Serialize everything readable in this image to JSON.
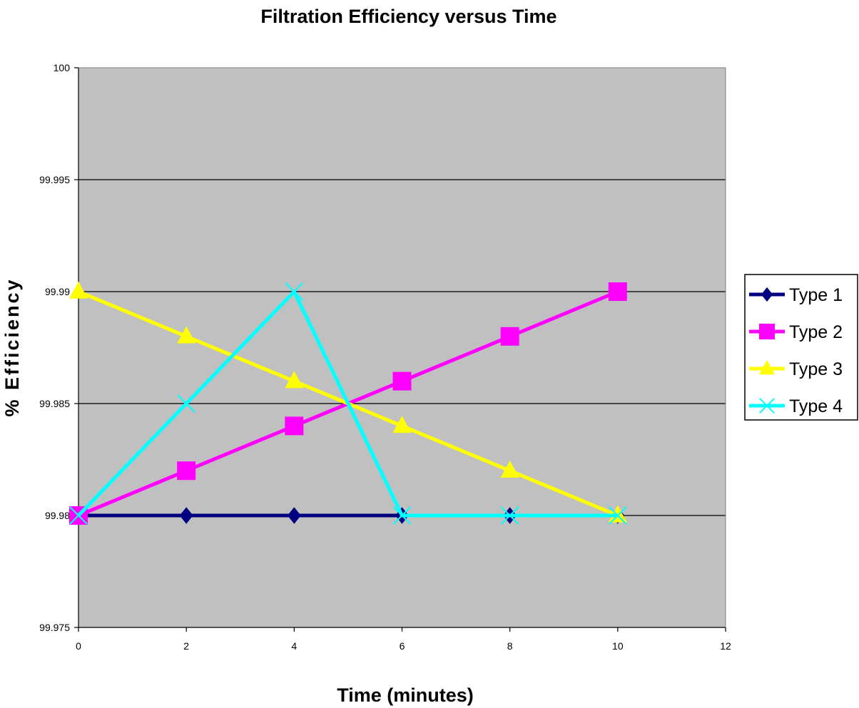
{
  "chart_data": {
    "type": "line",
    "title": "Filtration Efficiency versus Time",
    "xlabel": "Time (minutes)",
    "ylabel": "% Efficiency",
    "xlim": [
      0,
      12
    ],
    "ylim": [
      99.975,
      100
    ],
    "x_ticks": [
      "0",
      "2",
      "4",
      "6",
      "8",
      "10",
      "12"
    ],
    "y_ticks": [
      "99.975",
      "99.98",
      "99.985",
      "99.99",
      "99.995",
      "100"
    ],
    "grid": "horizontal major gridlines",
    "plot_background": "#c0c0c0",
    "legend_position": "right",
    "series": [
      {
        "name": "Type 1",
        "color": "#000080",
        "marker": "diamond",
        "x": [
          0,
          2,
          4,
          6,
          8,
          10
        ],
        "y": [
          99.98,
          99.98,
          99.98,
          99.98,
          99.98,
          99.98
        ]
      },
      {
        "name": "Type 2",
        "color": "#ff00ff",
        "marker": "square",
        "x": [
          0,
          2,
          4,
          6,
          8,
          10
        ],
        "y": [
          99.98,
          99.982,
          99.984,
          99.986,
          99.988,
          99.99
        ]
      },
      {
        "name": "Type 3",
        "color": "#ffff00",
        "marker": "triangle",
        "x": [
          0,
          2,
          4,
          6,
          8,
          10
        ],
        "y": [
          99.99,
          99.988,
          99.986,
          99.984,
          99.982,
          99.98
        ]
      },
      {
        "name": "Type 4",
        "color": "#00ffff",
        "marker": "x",
        "x": [
          0,
          2,
          4,
          6,
          8,
          10
        ],
        "y": [
          99.98,
          99.985,
          99.99,
          99.98,
          99.98,
          99.98
        ]
      }
    ]
  }
}
